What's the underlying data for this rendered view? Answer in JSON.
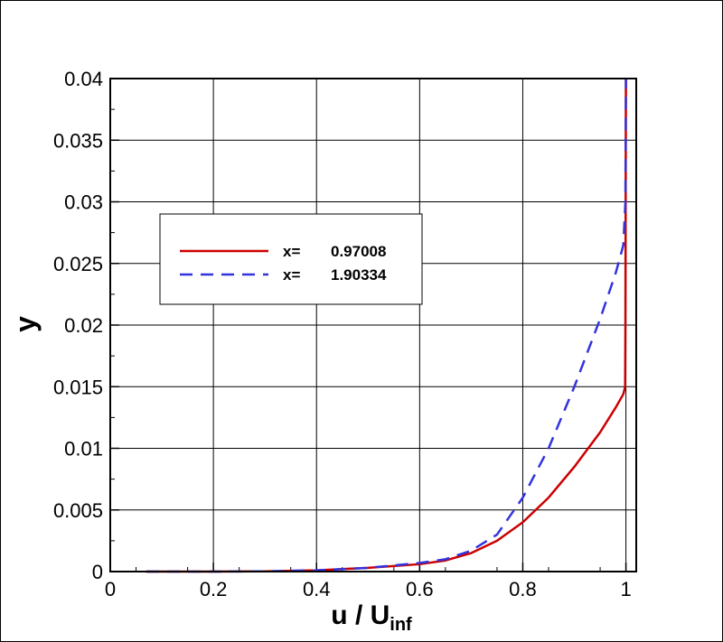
{
  "chart_data": {
    "type": "line",
    "xlabel": "u / U",
    "xlabel_sub": "inf",
    "ylabel": "y",
    "xlim": [
      0,
      1.02
    ],
    "ylim": [
      0,
      0.04
    ],
    "xticks": [
      0,
      0.2,
      0.4,
      0.6,
      0.8,
      1
    ],
    "xtick_labels": [
      "0",
      "0.2",
      "0.4",
      "0.6",
      "0.8",
      "1"
    ],
    "yticks": [
      0,
      0.005,
      0.01,
      0.015,
      0.02,
      0.025,
      0.03,
      0.035,
      0.04
    ],
    "ytick_labels": [
      "0",
      "0.005",
      "0.01",
      "0.015",
      "0.02",
      "0.025",
      "0.03",
      "0.035",
      "0.04"
    ],
    "grid": true,
    "legend_position": "upper-left",
    "series": [
      {
        "name": "x=",
        "value": "0.97008",
        "color": "#cc0000",
        "style": "solid",
        "x": [
          0.07,
          0.2,
          0.3,
          0.4,
          0.5,
          0.6,
          0.65,
          0.7,
          0.75,
          0.8,
          0.85,
          0.9,
          0.95,
          0.98,
          0.995,
          0.9985,
          0.999,
          0.9995,
          1.0
        ],
        "y": [
          0,
          0,
          2e-05,
          0.0001,
          0.0003,
          0.0006,
          0.0009,
          0.0015,
          0.0025,
          0.004,
          0.006,
          0.0085,
          0.0113,
          0.0133,
          0.0144,
          0.015,
          0.02,
          0.03,
          0.04
        ]
      },
      {
        "name": "x=",
        "value": "1.90334",
        "color": "#3333dd",
        "style": "dashed",
        "x": [
          0.07,
          0.2,
          0.3,
          0.4,
          0.5,
          0.6,
          0.65,
          0.7,
          0.75,
          0.8,
          0.85,
          0.9,
          0.95,
          0.98,
          0.99,
          0.995,
          0.999,
          1.0
        ],
        "y": [
          0,
          0,
          2e-05,
          0.0001,
          0.0003,
          0.0007,
          0.001,
          0.0017,
          0.003,
          0.006,
          0.01,
          0.015,
          0.0205,
          0.0242,
          0.0257,
          0.0265,
          0.03,
          0.04
        ]
      }
    ]
  }
}
